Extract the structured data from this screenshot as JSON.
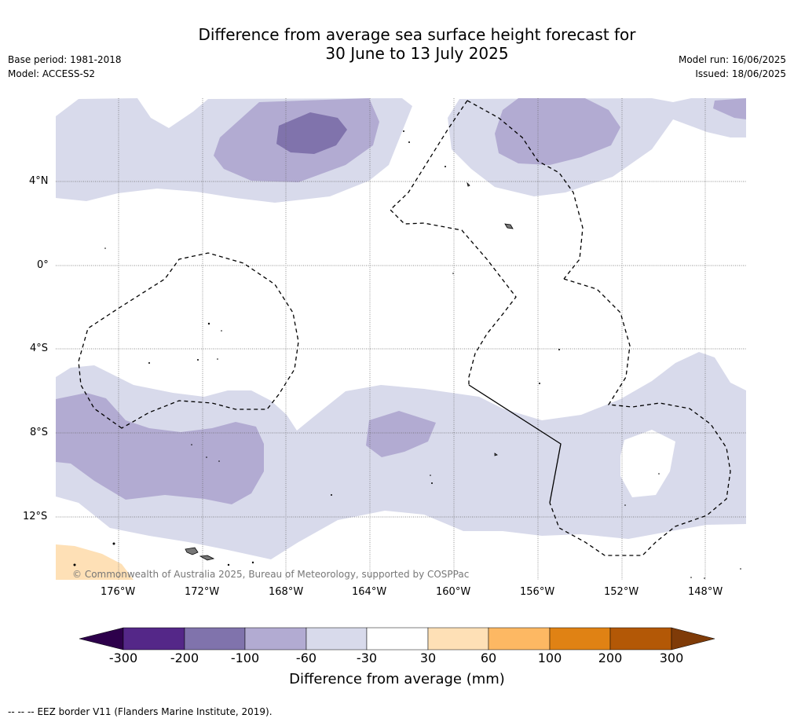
{
  "header": {
    "title_line1": "Difference from average sea surface height forecast for",
    "title_line2": "30 June to 13 July 2025",
    "base_period": "Base period: 1981-2018",
    "model": "Model: ACCESS-S2",
    "model_run": "Model run: 16/06/2025",
    "issued": "Issued: 18/06/2025"
  },
  "map": {
    "lat_labels": [
      "4°N",
      "0°",
      "4°S",
      "8°S",
      "12°S"
    ],
    "lon_labels": [
      "176°W",
      "172°W",
      "168°W",
      "164°W",
      "160°W",
      "156°W",
      "152°W",
      "148°W"
    ],
    "copyright": "© Commonwealth of Australia 2025, Bureau of Meteorology, supported by COSPPac"
  },
  "colorbar": {
    "title": "Difference from average (mm)",
    "ticks": [
      "-300",
      "-200",
      "-100",
      "-60",
      "-30",
      "30",
      "60",
      "100",
      "200",
      "300"
    ],
    "colors": [
      "#2d004b",
      "#542788",
      "#8073ac",
      "#b2abd2",
      "#d8daeb",
      "#ffffff",
      "#fee0b6",
      "#fdb863",
      "#e08214",
      "#b35806",
      "#7f3b08"
    ]
  },
  "footer": {
    "legend_symbol": "--  --  --",
    "legend_text": "EEZ border V11 (Flanders Marine Institute, 2019)."
  }
}
